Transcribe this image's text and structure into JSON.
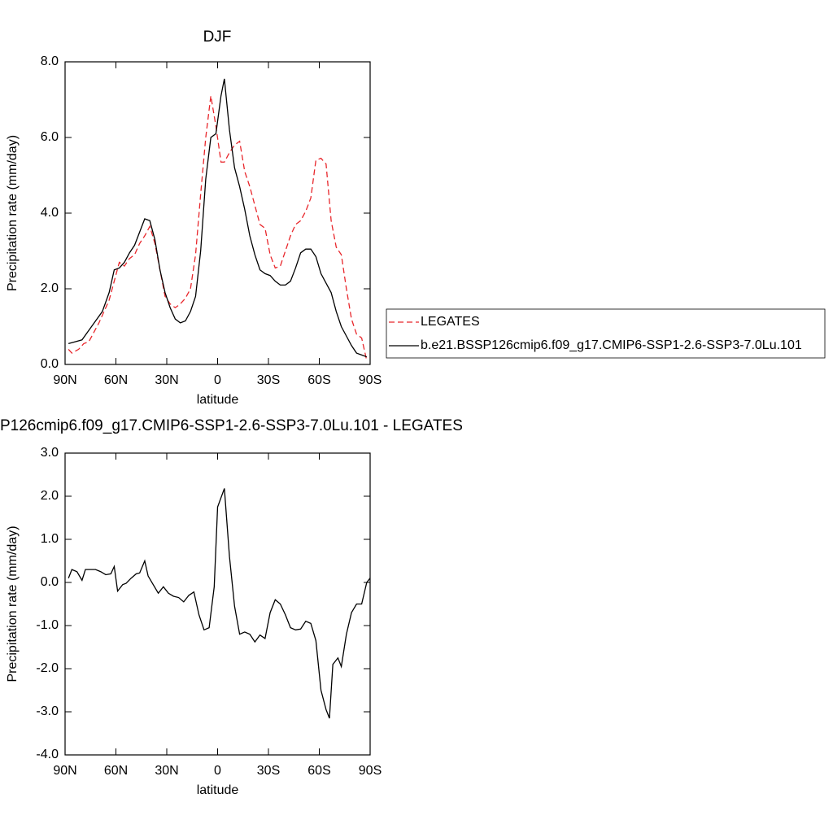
{
  "chart_data": [
    {
      "type": "line",
      "title": "DJF",
      "xlabel": "latitude",
      "ylabel": "Precipitation rate (mm/day)",
      "xlim": [
        90,
        -90
      ],
      "xticks": [
        {
          "value": 90,
          "label": "90N"
        },
        {
          "value": 60,
          "label": "60N"
        },
        {
          "value": 30,
          "label": "30N"
        },
        0,
        {
          "value": -30,
          "label": "30S"
        },
        {
          "value": -60,
          "label": "60S"
        },
        {
          "value": -90,
          "label": "90S"
        }
      ],
      "ylim": [
        0,
        8
      ],
      "yticks": [
        {
          "value": 0,
          "label": "0.0"
        },
        {
          "value": 2,
          "label": "2.0"
        },
        {
          "value": 4,
          "label": "4.0"
        },
        {
          "value": 6,
          "label": "6.0"
        },
        {
          "value": 8,
          "label": "8.0"
        }
      ],
      "legend": "right",
      "series": [
        {
          "name": "LEGATES",
          "color": "#e8262b",
          "line_style": "dashed",
          "x": [
            88,
            86,
            82,
            79,
            76,
            73,
            70,
            67,
            64,
            61,
            58,
            55,
            52,
            49,
            46,
            43,
            40,
            37,
            34,
            31,
            28,
            25,
            22,
            19,
            16,
            13,
            10,
            7,
            4,
            1,
            -2,
            -4,
            -7,
            -10,
            -13,
            -16,
            -19,
            -22,
            -25,
            -28,
            -31,
            -34,
            -37,
            -40,
            -43,
            -46,
            -49,
            -52,
            -55,
            -58,
            -61,
            -64,
            -67,
            -70,
            -73,
            -76,
            -79,
            -82,
            -85,
            -88
          ],
          "values": [
            0.4,
            0.3,
            0.4,
            0.55,
            0.6,
            0.85,
            1.1,
            1.4,
            1.7,
            2.2,
            2.7,
            2.6,
            2.8,
            2.9,
            3.2,
            3.4,
            3.65,
            3.2,
            2.5,
            1.8,
            1.6,
            1.5,
            1.6,
            1.75,
            2.0,
            2.9,
            4.5,
            6.0,
            7.1,
            6.3,
            5.35,
            5.35,
            5.6,
            5.8,
            5.9,
            5.1,
            4.7,
            4.2,
            3.7,
            3.6,
            2.9,
            2.55,
            2.6,
            3.0,
            3.4,
            3.7,
            3.8,
            4.05,
            4.4,
            5.4,
            5.45,
            5.3,
            3.8,
            3.1,
            2.9,
            2.0,
            1.2,
            0.8,
            0.7,
            0.1
          ]
        },
        {
          "name": "b.e21.BSSP126cmip6.f09_g17.CMIP6-SSP1-2.6-SSP3-7.0Lu.101",
          "color": "#000000",
          "line_style": "solid",
          "x": [
            88,
            84,
            80,
            76,
            72,
            68,
            64,
            61,
            58,
            55,
            52,
            49,
            46,
            43,
            40,
            37,
            34,
            31,
            28,
            25,
            22,
            19,
            16,
            13,
            10,
            7,
            4,
            1,
            -2,
            -4,
            -7,
            -10,
            -13,
            -16,
            -19,
            -22,
            -25,
            -28,
            -31,
            -34,
            -37,
            -40,
            -43,
            -46,
            -49,
            -52,
            -55,
            -58,
            -61,
            -64,
            -67,
            -70,
            -73,
            -76,
            -79,
            -82,
            -85,
            -88
          ],
          "values": [
            0.55,
            0.6,
            0.65,
            0.9,
            1.15,
            1.4,
            1.9,
            2.5,
            2.55,
            2.7,
            2.95,
            3.15,
            3.5,
            3.85,
            3.8,
            3.3,
            2.5,
            1.9,
            1.5,
            1.2,
            1.1,
            1.15,
            1.4,
            1.8,
            3.0,
            4.9,
            6.0,
            6.1,
            7.1,
            7.55,
            6.2,
            5.2,
            4.7,
            4.1,
            3.4,
            2.9,
            2.5,
            2.4,
            2.35,
            2.2,
            2.1,
            2.1,
            2.2,
            2.55,
            2.95,
            3.05,
            3.05,
            2.85,
            2.4,
            2.15,
            1.9,
            1.4,
            1.0,
            0.75,
            0.5,
            0.3,
            0.25,
            0.2
          ]
        }
      ]
    },
    {
      "type": "line",
      "title": "P126cmip6.f09_g17.CMIP6-SSP1-2.6-SSP3-7.0Lu.101 - LEGATES",
      "xlabel": "latitude",
      "ylabel": "Precipitation rate (mm/day)",
      "xlim": [
        90,
        -90
      ],
      "xticks": [
        {
          "value": 90,
          "label": "90N"
        },
        {
          "value": 60,
          "label": "60N"
        },
        {
          "value": 30,
          "label": "30N"
        },
        0,
        {
          "value": -30,
          "label": "30S"
        },
        {
          "value": -60,
          "label": "60S"
        },
        {
          "value": -90,
          "label": "90S"
        }
      ],
      "ylim": [
        -4,
        3
      ],
      "yticks": [
        {
          "value": -4,
          "label": "-4.0"
        },
        {
          "value": -3,
          "label": "-3.0"
        },
        {
          "value": -2,
          "label": "-2.0"
        },
        {
          "value": -1,
          "label": "-1.0"
        },
        {
          "value": 0,
          "label": "0.0"
        },
        {
          "value": 1,
          "label": "1.0"
        },
        {
          "value": 2,
          "label": "2.0"
        },
        {
          "value": 3,
          "label": "3.0"
        }
      ],
      "series": [
        {
          "color": "#000000",
          "line_style": "solid",
          "x": [
            88,
            86,
            83,
            80,
            78,
            75,
            72,
            69,
            66,
            63,
            61,
            59,
            56,
            54,
            51,
            48,
            46,
            43,
            41,
            38,
            35,
            32,
            29,
            26,
            23,
            20,
            17,
            14,
            11,
            8,
            5,
            2,
            0,
            -4,
            -7,
            -10,
            -13,
            -16,
            -19,
            -22,
            -25,
            -28,
            -31,
            -34,
            -37,
            -40,
            -43,
            -46,
            -49,
            -52,
            -55,
            -58,
            -61,
            -64,
            -66,
            -68,
            -71,
            -73,
            -76,
            -79,
            -82,
            -85,
            -88,
            -90
          ],
          "values": [
            0.1,
            0.3,
            0.25,
            0.05,
            0.3,
            0.3,
            0.3,
            0.25,
            0.18,
            0.2,
            0.37,
            -0.2,
            -0.05,
            -0.02,
            0.1,
            0.2,
            0.22,
            0.5,
            0.15,
            -0.05,
            -0.25,
            -0.1,
            -0.25,
            -0.32,
            -0.35,
            -0.45,
            -0.3,
            -0.22,
            -0.75,
            -1.1,
            -1.05,
            -0.1,
            1.75,
            2.18,
            0.6,
            -0.55,
            -1.2,
            -1.15,
            -1.2,
            -1.38,
            -1.22,
            -1.3,
            -0.7,
            -0.4,
            -0.5,
            -0.75,
            -1.05,
            -1.1,
            -1.08,
            -0.9,
            -0.95,
            -1.35,
            -2.5,
            -2.95,
            -3.15,
            -1.9,
            -1.75,
            -1.95,
            -1.2,
            -0.7,
            -0.5,
            -0.5,
            0.0,
            0.1
          ]
        }
      ]
    }
  ]
}
